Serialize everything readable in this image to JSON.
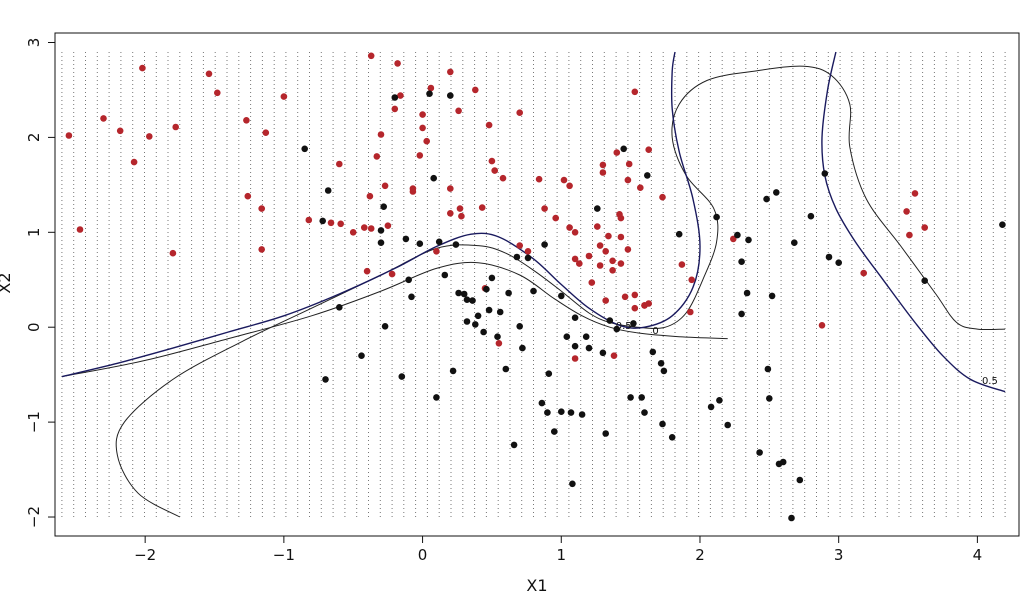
{
  "chart_data": {
    "type": "scatter",
    "title": "",
    "xlabel": "X1",
    "ylabel": "X2",
    "xlim": [
      -2.65,
      4.3
    ],
    "ylim": [
      -2.2,
      3.1
    ],
    "xticks": [
      -2,
      -1,
      0,
      1,
      2,
      3,
      4
    ],
    "yticks": [
      -2,
      -1,
      0,
      1,
      2,
      3
    ],
    "xtick_labels": [
      "−2",
      "−1",
      "0",
      "1",
      "2",
      "3",
      "4"
    ],
    "ytick_labels": [
      "−2",
      "−1",
      "0",
      "1",
      "2",
      "3"
    ],
    "grid": "dotted background lattice",
    "grid_range": {
      "x": [
        -2.6,
        4.2
      ],
      "y": [
        -2.0,
        2.9
      ]
    },
    "colors": {
      "class_a": "#b5262c",
      "class_b": "#111111",
      "boundary": "#1a1a5e",
      "contour": "#222222",
      "grid": "#777777"
    },
    "series": [
      {
        "color": "#b5262c",
        "points": [
          [
            -2.55,
            2.02
          ],
          [
            -2.47,
            1.03
          ],
          [
            -2.3,
            2.2
          ],
          [
            -2.18,
            2.07
          ],
          [
            -2.08,
            1.74
          ],
          [
            -2.02,
            2.73
          ],
          [
            -1.97,
            2.01
          ],
          [
            -1.8,
            0.78
          ],
          [
            -1.78,
            2.11
          ],
          [
            -1.54,
            2.67
          ],
          [
            -1.48,
            2.47
          ],
          [
            -1.27,
            2.18
          ],
          [
            -1.26,
            1.38
          ],
          [
            -1.16,
            1.25
          ],
          [
            -1.16,
            0.82
          ],
          [
            -1.13,
            2.05
          ],
          [
            -1.0,
            2.43
          ],
          [
            -0.82,
            1.13
          ],
          [
            -0.66,
            1.1
          ],
          [
            -0.6,
            1.72
          ],
          [
            -0.59,
            1.09
          ],
          [
            -0.5,
            1.0
          ],
          [
            -0.42,
            1.05
          ],
          [
            -0.4,
            0.59
          ],
          [
            -0.38,
            1.38
          ],
          [
            -0.37,
            2.86
          ],
          [
            -0.37,
            1.04
          ],
          [
            -0.33,
            1.8
          ],
          [
            -0.3,
            2.03
          ],
          [
            -0.27,
            1.49
          ],
          [
            -0.25,
            1.07
          ],
          [
            -0.22,
            0.56
          ],
          [
            -0.2,
            2.3
          ],
          [
            -0.18,
            2.78
          ],
          [
            -0.16,
            2.44
          ],
          [
            -0.07,
            1.46
          ],
          [
            -0.07,
            1.43
          ],
          [
            -0.02,
            1.81
          ],
          [
            0.0,
            2.24
          ],
          [
            0.0,
            2.1
          ],
          [
            0.03,
            1.96
          ],
          [
            0.06,
            2.52
          ],
          [
            0.1,
            0.8
          ],
          [
            0.2,
            1.46
          ],
          [
            0.2,
            1.2
          ],
          [
            0.2,
            2.69
          ],
          [
            0.26,
            2.28
          ],
          [
            0.27,
            1.25
          ],
          [
            0.28,
            1.17
          ],
          [
            0.38,
            2.5
          ],
          [
            0.43,
            1.26
          ],
          [
            0.45,
            0.41
          ],
          [
            0.48,
            2.13
          ],
          [
            0.5,
            1.75
          ],
          [
            0.52,
            1.65
          ],
          [
            0.55,
            -0.17
          ],
          [
            0.58,
            1.57
          ],
          [
            0.7,
            2.26
          ],
          [
            0.7,
            0.86
          ],
          [
            0.76,
            0.8
          ],
          [
            0.84,
            1.56
          ],
          [
            0.88,
            1.25
          ],
          [
            0.96,
            1.15
          ],
          [
            1.02,
            1.55
          ],
          [
            1.06,
            1.49
          ],
          [
            1.06,
            1.05
          ],
          [
            1.1,
            1.0
          ],
          [
            1.1,
            0.72
          ],
          [
            1.1,
            -0.33
          ],
          [
            1.13,
            0.67
          ],
          [
            1.2,
            0.75
          ],
          [
            1.22,
            0.47
          ],
          [
            1.26,
            1.06
          ],
          [
            1.28,
            0.86
          ],
          [
            1.28,
            0.65
          ],
          [
            1.3,
            1.71
          ],
          [
            1.3,
            1.63
          ],
          [
            1.32,
            0.8
          ],
          [
            1.32,
            0.28
          ],
          [
            1.34,
            0.96
          ],
          [
            1.37,
            0.7
          ],
          [
            1.37,
            0.6
          ],
          [
            1.38,
            -0.3
          ],
          [
            1.4,
            1.84
          ],
          [
            1.42,
            1.19
          ],
          [
            1.43,
            1.15
          ],
          [
            1.43,
            0.95
          ],
          [
            1.43,
            0.67
          ],
          [
            1.46,
            0.32
          ],
          [
            1.48,
            1.55
          ],
          [
            1.48,
            0.82
          ],
          [
            1.49,
            1.72
          ],
          [
            1.53,
            2.48
          ],
          [
            1.53,
            0.2
          ],
          [
            1.53,
            0.34
          ],
          [
            1.57,
            1.47
          ],
          [
            1.6,
            0.23
          ],
          [
            1.6,
            0.23
          ],
          [
            1.63,
            1.87
          ],
          [
            1.63,
            0.25
          ],
          [
            1.73,
            1.37
          ],
          [
            1.87,
            0.66
          ],
          [
            1.93,
            0.16
          ],
          [
            1.94,
            0.5
          ],
          [
            2.24,
            0.93
          ],
          [
            2.88,
            0.02
          ],
          [
            3.18,
            0.57
          ],
          [
            3.49,
            1.22
          ],
          [
            3.51,
            0.97
          ],
          [
            3.55,
            1.41
          ],
          [
            3.62,
            1.05
          ]
        ]
      },
      {
        "color": "#111111",
        "points": [
          [
            -0.85,
            1.88
          ],
          [
            -0.72,
            1.12
          ],
          [
            -0.7,
            -0.55
          ],
          [
            -0.68,
            1.44
          ],
          [
            -0.6,
            0.21
          ],
          [
            -0.44,
            -0.3
          ],
          [
            -0.3,
            1.02
          ],
          [
            -0.3,
            0.89
          ],
          [
            -0.28,
            1.27
          ],
          [
            -0.27,
            0.01
          ],
          [
            -0.2,
            2.42
          ],
          [
            -0.15,
            -0.52
          ],
          [
            -0.12,
            0.93
          ],
          [
            -0.1,
            0.5
          ],
          [
            -0.08,
            0.32
          ],
          [
            -0.02,
            0.88
          ],
          [
            0.05,
            2.46
          ],
          [
            0.08,
            1.57
          ],
          [
            0.1,
            -0.74
          ],
          [
            0.12,
            0.9
          ],
          [
            0.16,
            0.55
          ],
          [
            0.2,
            2.44
          ],
          [
            0.22,
            -0.46
          ],
          [
            0.24,
            0.87
          ],
          [
            0.26,
            0.36
          ],
          [
            0.3,
            0.35
          ],
          [
            0.32,
            0.06
          ],
          [
            0.32,
            0.29
          ],
          [
            0.36,
            0.28
          ],
          [
            0.38,
            0.03
          ],
          [
            0.4,
            0.12
          ],
          [
            0.44,
            -0.05
          ],
          [
            0.46,
            0.4
          ],
          [
            0.48,
            0.18
          ],
          [
            0.5,
            0.52
          ],
          [
            0.54,
            -0.1
          ],
          [
            0.56,
            0.16
          ],
          [
            0.6,
            -0.44
          ],
          [
            0.62,
            0.36
          ],
          [
            0.66,
            -1.24
          ],
          [
            0.68,
            0.74
          ],
          [
            0.7,
            0.01
          ],
          [
            0.72,
            -0.22
          ],
          [
            0.76,
            0.73
          ],
          [
            0.8,
            0.38
          ],
          [
            0.86,
            -0.8
          ],
          [
            0.88,
            0.87
          ],
          [
            0.9,
            -0.9
          ],
          [
            0.91,
            -0.49
          ],
          [
            0.95,
            -1.1
          ],
          [
            1.0,
            0.33
          ],
          [
            1.0,
            -0.89
          ],
          [
            1.04,
            -0.1
          ],
          [
            1.07,
            -0.9
          ],
          [
            1.08,
            -1.65
          ],
          [
            1.1,
            -0.2
          ],
          [
            1.1,
            0.1
          ],
          [
            1.15,
            -0.92
          ],
          [
            1.18,
            -0.1
          ],
          [
            1.2,
            -0.22
          ],
          [
            1.26,
            1.25
          ],
          [
            1.3,
            -0.27
          ],
          [
            1.32,
            -1.12
          ],
          [
            1.35,
            0.07
          ],
          [
            1.4,
            -0.02
          ],
          [
            1.45,
            1.88
          ],
          [
            1.5,
            -0.74
          ],
          [
            1.52,
            0.04
          ],
          [
            1.58,
            -0.74
          ],
          [
            1.6,
            -0.9
          ],
          [
            1.62,
            1.6
          ],
          [
            1.66,
            -0.26
          ],
          [
            1.72,
            -0.38
          ],
          [
            1.73,
            -1.02
          ],
          [
            1.74,
            -0.46
          ],
          [
            1.8,
            -1.16
          ],
          [
            1.85,
            0.98
          ],
          [
            2.08,
            -0.84
          ],
          [
            2.12,
            1.16
          ],
          [
            2.14,
            -0.77
          ],
          [
            2.2,
            -1.03
          ],
          [
            2.27,
            0.97
          ],
          [
            2.3,
            0.69
          ],
          [
            2.3,
            0.14
          ],
          [
            2.34,
            0.36
          ],
          [
            2.35,
            0.92
          ],
          [
            2.43,
            -1.32
          ],
          [
            2.48,
            1.35
          ],
          [
            2.49,
            -0.44
          ],
          [
            2.5,
            -0.75
          ],
          [
            2.52,
            0.33
          ],
          [
            2.55,
            1.42
          ],
          [
            2.57,
            -1.44
          ],
          [
            2.6,
            -1.42
          ],
          [
            2.66,
            -2.01
          ],
          [
            2.68,
            0.89
          ],
          [
            2.72,
            -1.61
          ],
          [
            2.8,
            1.17
          ],
          [
            2.9,
            1.62
          ],
          [
            2.93,
            0.74
          ],
          [
            3.0,
            0.68
          ],
          [
            3.62,
            0.49
          ],
          [
            4.18,
            1.08
          ]
        ]
      }
    ],
    "decision_boundary": [
      [
        -2.6,
        -0.52
      ],
      [
        -2.2,
        -0.38
      ],
      [
        -1.8,
        -0.22
      ],
      [
        -1.4,
        -0.05
      ],
      [
        -1.0,
        0.12
      ],
      [
        -0.6,
        0.35
      ],
      [
        -0.2,
        0.62
      ],
      [
        0.1,
        0.85
      ],
      [
        0.35,
        0.98
      ],
      [
        0.55,
        0.95
      ],
      [
        0.8,
        0.72
      ],
      [
        1.0,
        0.45
      ],
      [
        1.2,
        0.2
      ],
      [
        1.42,
        0.02
      ],
      [
        1.6,
        0.0
      ],
      [
        1.8,
        0.12
      ],
      [
        1.95,
        0.42
      ],
      [
        2.0,
        0.85
      ],
      [
        1.95,
        1.35
      ],
      [
        1.85,
        1.85
      ],
      [
        1.8,
        2.3
      ],
      [
        1.8,
        2.7
      ],
      [
        1.82,
        2.9
      ]
    ],
    "boundary_right": [
      [
        2.98,
        2.9
      ],
      [
        2.92,
        2.5
      ],
      [
        2.88,
        2.0
      ],
      [
        2.9,
        1.6
      ],
      [
        2.98,
        1.25
      ],
      [
        3.12,
        0.9
      ],
      [
        3.32,
        0.5
      ],
      [
        3.55,
        0.05
      ],
      [
        3.75,
        -0.3
      ],
      [
        3.95,
        -0.55
      ],
      [
        4.2,
        -0.68
      ]
    ],
    "contour_upper": [
      [
        -1.75,
        -2.0
      ],
      [
        -2.05,
        -1.75
      ],
      [
        -2.2,
        -1.35
      ],
      [
        -2.15,
        -1.0
      ],
      [
        -1.8,
        -0.55
      ],
      [
        -1.3,
        -0.15
      ],
      [
        -0.8,
        0.2
      ],
      [
        -0.3,
        0.55
      ],
      [
        0.1,
        0.83
      ],
      [
        0.4,
        0.86
      ],
      [
        0.6,
        0.78
      ],
      [
        0.8,
        0.6
      ],
      [
        1.0,
        0.38
      ],
      [
        1.2,
        0.15
      ],
      [
        1.35,
        0.05
      ],
      [
        1.55,
        0.0
      ],
      [
        1.75,
        0.0
      ],
      [
        1.9,
        0.15
      ],
      [
        2.02,
        0.5
      ],
      [
        2.12,
        0.9
      ],
      [
        2.1,
        1.25
      ],
      [
        1.9,
        1.6
      ],
      [
        1.8,
        2.0
      ],
      [
        1.85,
        2.35
      ],
      [
        2.05,
        2.6
      ],
      [
        2.4,
        2.7
      ],
      [
        2.75,
        2.75
      ],
      [
        2.95,
        2.65
      ],
      [
        3.08,
        2.35
      ],
      [
        3.08,
        1.9
      ],
      [
        3.2,
        1.35
      ],
      [
        3.45,
        0.85
      ],
      [
        3.7,
        0.35
      ],
      [
        3.85,
        0.05
      ],
      [
        4.0,
        -0.02
      ],
      [
        4.2,
        -0.02
      ]
    ],
    "contour_lower": [
      [
        -2.6,
        -0.52
      ],
      [
        -2.0,
        -0.35
      ],
      [
        -1.4,
        -0.12
      ],
      [
        -0.8,
        0.12
      ],
      [
        -0.3,
        0.38
      ],
      [
        0.1,
        0.62
      ],
      [
        0.4,
        0.68
      ],
      [
        0.7,
        0.55
      ],
      [
        0.95,
        0.3
      ],
      [
        1.15,
        0.12
      ],
      [
        1.35,
        0.0
      ],
      [
        1.55,
        -0.06
      ],
      [
        1.85,
        -0.1
      ],
      [
        2.2,
        -0.12
      ]
    ],
    "contour_labels": [
      {
        "text": "0.5",
        "x": 1.45,
        "y": -0.02
      },
      {
        "text": "0",
        "x": 1.68,
        "y": -0.07
      },
      {
        "text": "0.5",
        "x": 4.09,
        "y": -0.6
      }
    ]
  }
}
